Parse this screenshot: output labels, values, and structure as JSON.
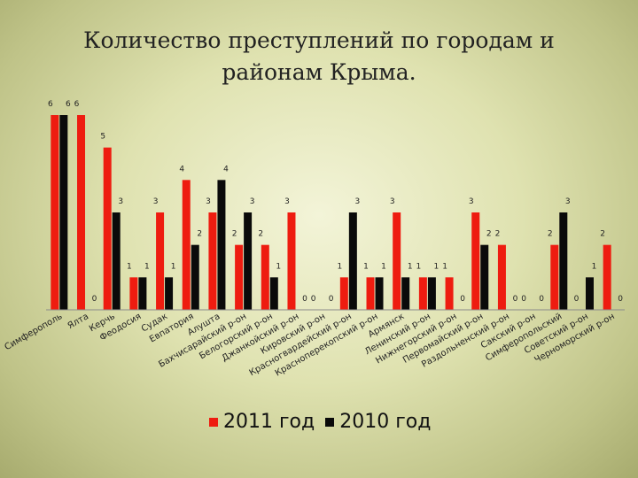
{
  "slide": {
    "title_line1": "Количество преступлений по городам и",
    "title_line2": "районам Крыма."
  },
  "colors": {
    "series_2011": "#ee1c10",
    "series_2010": "#0a0a0a"
  },
  "chart_data": {
    "type": "bar",
    "title": "Количество преступлений по городам и районам Крыма.",
    "xlabel": "",
    "ylabel": "",
    "ylim": [
      0,
      6
    ],
    "grid": false,
    "legend_position": "bottom",
    "categories": [
      "Симферополь",
      "Ялта",
      "Керчь",
      "Феодосия",
      "Судак",
      "Евпатория",
      "Алушта",
      "Бахчисарайский р-он",
      "Белогорский р-он",
      "Джанкойский р-он",
      "Кировский р-он",
      "Красногвардейский р-он",
      "Красноперекопский р-он",
      "Армянск",
      "Ленинский р-он",
      "Нижнегорский р-он",
      "Первомайский р-он",
      "Раздольненский р-он",
      "Сакский р-он",
      "Симферопольский",
      "Советский р-он",
      "Черноморский р-он"
    ],
    "series": [
      {
        "name": "2011 год",
        "values": [
          6,
          6,
          5,
          1,
          3,
          4,
          3,
          2,
          2,
          3,
          0,
          1,
          1,
          3,
          1,
          1,
          3,
          2,
          0,
          2,
          0,
          2
        ]
      },
      {
        "name": "2010 год",
        "values": [
          6,
          0,
          3,
          1,
          1,
          2,
          4,
          3,
          1,
          0,
          0,
          3,
          1,
          1,
          1,
          0,
          2,
          0,
          0,
          3,
          1,
          0
        ]
      }
    ]
  },
  "legend": {
    "label_2011": "2011 год",
    "label_2010": "2010 год"
  }
}
